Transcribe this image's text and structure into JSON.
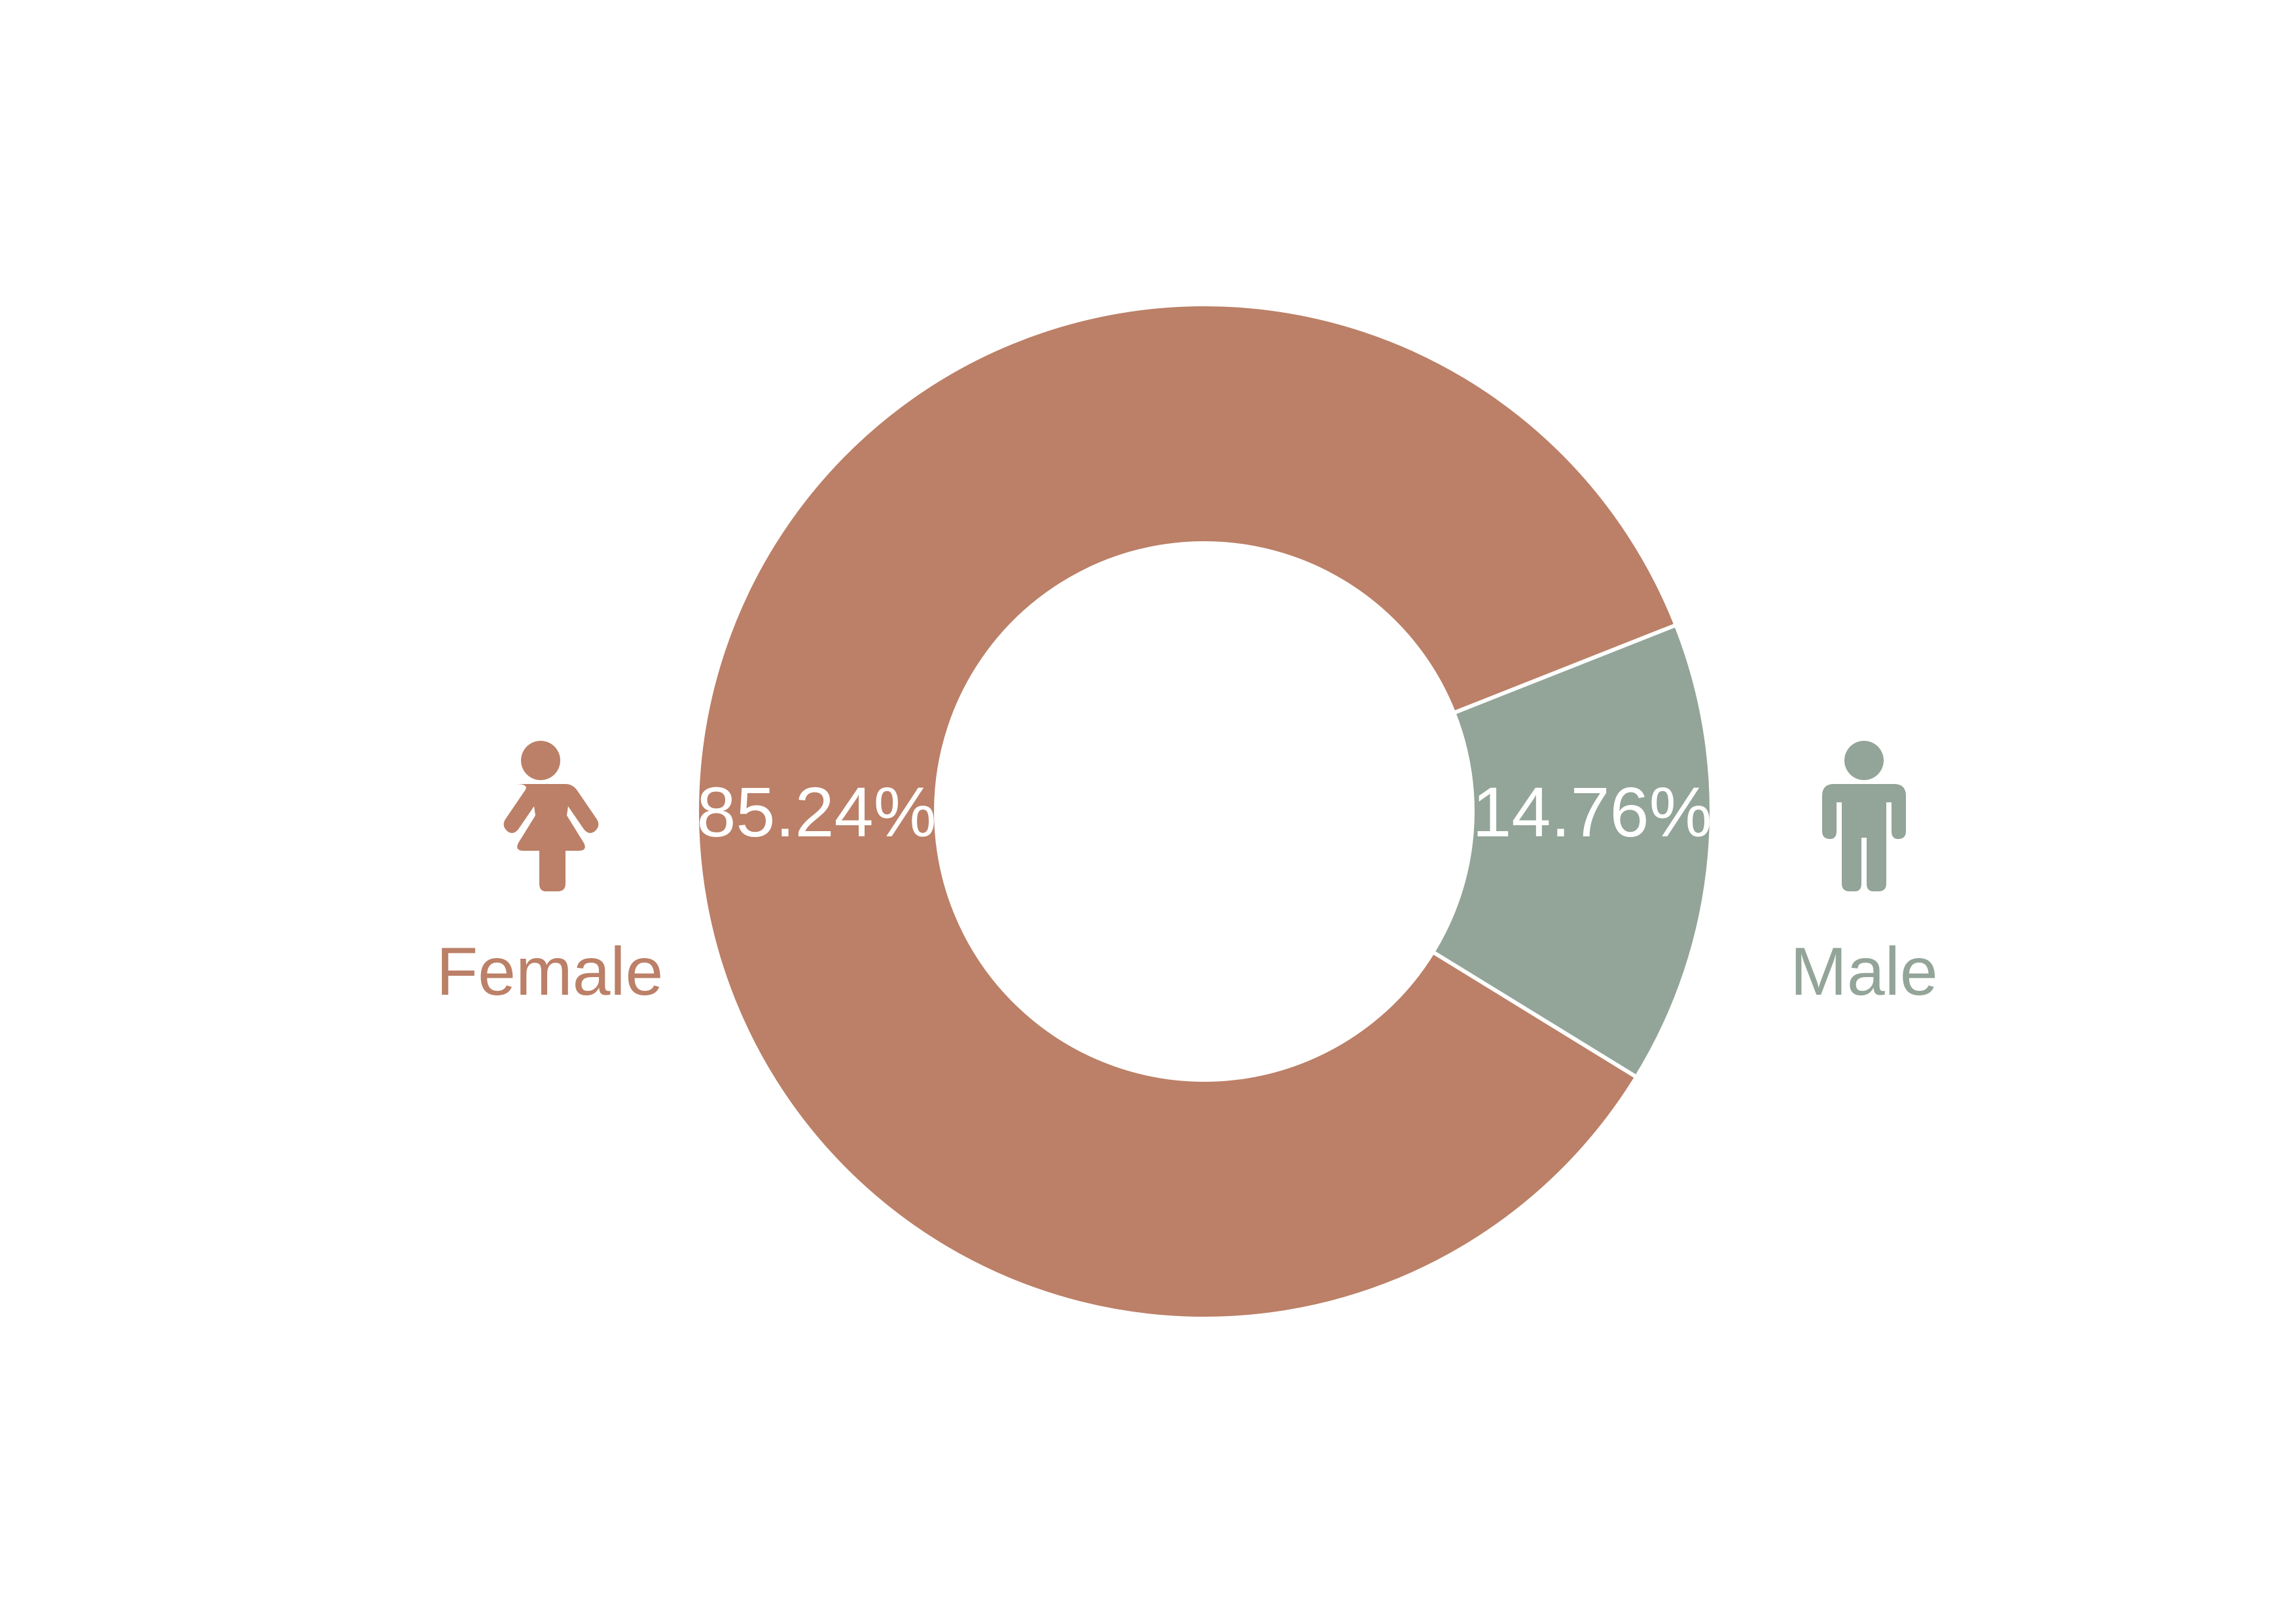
{
  "chart_data": {
    "type": "pie",
    "variant": "donut",
    "categories": [
      "Female",
      "Male"
    ],
    "values": [
      85.24,
      14.76
    ],
    "value_labels": [
      "85.24%",
      "14.76%"
    ],
    "colors": [
      "#BB8067",
      "#93A498"
    ],
    "label_color": "#FFFFFF",
    "separator_color": "#FFFFFF",
    "legend": [
      {
        "label": "Female",
        "icon": "female-person-icon",
        "color": "#BB8067",
        "placement": "left"
      },
      {
        "label": "Male",
        "icon": "male-person-icon",
        "color": "#93A498",
        "placement": "right"
      }
    ],
    "title": "",
    "grid": false
  }
}
